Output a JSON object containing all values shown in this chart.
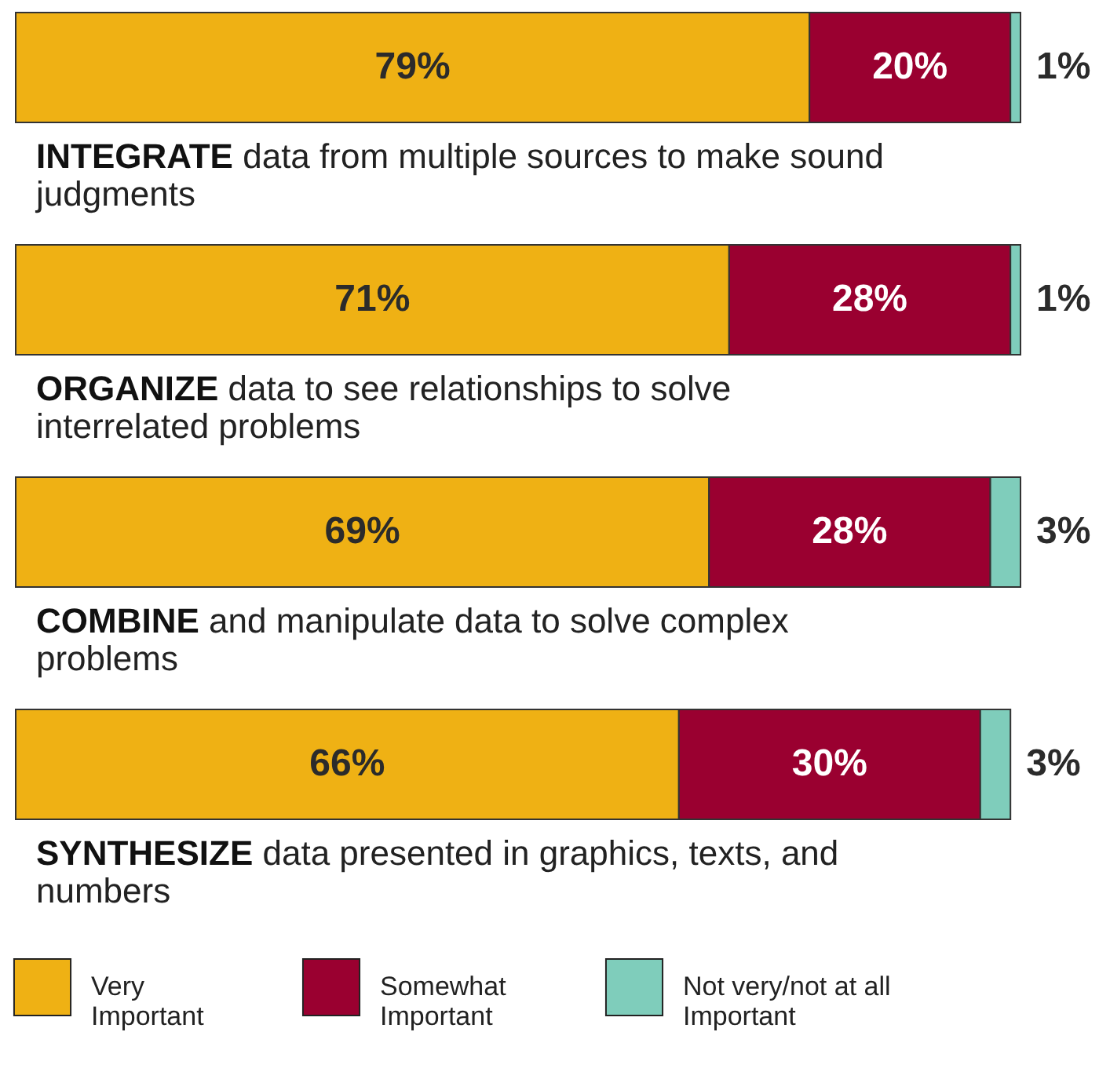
{
  "chart_data": {
    "type": "bar",
    "orientation": "horizontal",
    "stacked": true,
    "categories": [
      "INTEGRATE data from multiple sources to make sound judgments",
      "ORGANIZE data to see relationships to solve interrelated problems",
      "COMBINE and manipulate data to solve complex problems",
      "SYNTHESIZE data presented in graphics, texts, and numbers"
    ],
    "series": [
      {
        "name": "Very Important",
        "color": "#efb114",
        "values": [
          79,
          71,
          69,
          66
        ],
        "value_labels": [
          "79%",
          "71%",
          "69%",
          "66%"
        ]
      },
      {
        "name": "Somewhat Important",
        "color": "#9a0030",
        "values": [
          20,
          28,
          28,
          30
        ],
        "value_labels": [
          "20%",
          "28%",
          "28%",
          "30%"
        ]
      },
      {
        "name": "Not very/not at all Important",
        "color": "#7fcdbb",
        "values": [
          1,
          1,
          3,
          3
        ],
        "value_labels": [
          "1%",
          "1%",
          "3%",
          "3%"
        ]
      }
    ],
    "legend": "bottom"
  }
}
